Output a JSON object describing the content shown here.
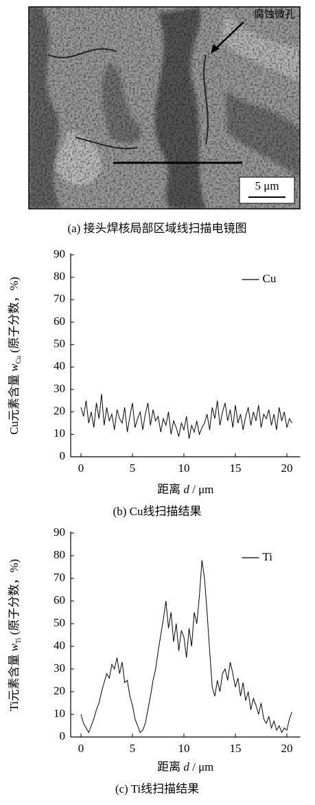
{
  "image_panel": {
    "annotation": "腐蚀微孔",
    "scale_bar": "5 μm",
    "caption": "(a) 接头焊核局部区域线扫描电镜图"
  },
  "chart_data": [
    {
      "type": "line",
      "caption": "(b) Cu线扫描结果",
      "xlabel": {
        "prefix": "距离 ",
        "var": "d",
        "suffix": " / μm"
      },
      "ylabel": {
        "prefix": "Cu元素含量 ",
        "var": "w",
        "sub": "Cu",
        "suffix": " (原子分数，%)"
      },
      "x": [
        0,
        0.25,
        0.5,
        0.75,
        1,
        1.25,
        1.5,
        1.75,
        2,
        2.25,
        2.5,
        2.75,
        3,
        3.25,
        3.5,
        3.75,
        4,
        4.25,
        4.5,
        4.75,
        5,
        5.25,
        5.5,
        5.75,
        6,
        6.25,
        6.5,
        6.75,
        7,
        7.25,
        7.5,
        7.75,
        8,
        8.25,
        8.5,
        8.75,
        9,
        9.25,
        9.5,
        9.75,
        10,
        10.25,
        10.5,
        10.75,
        11,
        11.25,
        11.5,
        11.75,
        12,
        12.25,
        12.5,
        12.75,
        13,
        13.25,
        13.5,
        13.75,
        14,
        14.25,
        14.5,
        14.75,
        15,
        15.25,
        15.5,
        15.75,
        16,
        16.25,
        16.5,
        16.75,
        17,
        17.25,
        17.5,
        17.75,
        18,
        18.25,
        18.5,
        18.75,
        19,
        19.25,
        19.5,
        19.75,
        20,
        20.25,
        20.5
      ],
      "series": [
        {
          "name": "Cu",
          "color": "#000000",
          "values": [
            22,
            18,
            25,
            15,
            20,
            13,
            24,
            17,
            28,
            14,
            22,
            16,
            19,
            12,
            21,
            17,
            15,
            22,
            11,
            18,
            24,
            13,
            17,
            20,
            12,
            19,
            24,
            14,
            21,
            16,
            18,
            11,
            17,
            14,
            20,
            10,
            16,
            13,
            9,
            15,
            12,
            18,
            8,
            14,
            11,
            16,
            10,
            13,
            15,
            19,
            12,
            22,
            17,
            25,
            14,
            20,
            24,
            16,
            21,
            13,
            23,
            15,
            19,
            12,
            18,
            22,
            14,
            20,
            16,
            23,
            13,
            19,
            17,
            21,
            14,
            19,
            12,
            22,
            16,
            20,
            13,
            17,
            15
          ]
        }
      ],
      "xlim": [
        -1,
        21.3
      ],
      "ylim": [
        0,
        90
      ],
      "xticks": [
        0,
        5,
        10,
        15,
        20
      ],
      "yticks": [
        0,
        10,
        20,
        30,
        40,
        50,
        60,
        70,
        80,
        90
      ],
      "legend": "upper right"
    },
    {
      "type": "line",
      "caption": "(c) Ti线扫描结果",
      "xlabel": {
        "prefix": "距离 ",
        "var": "d",
        "suffix": " / μm"
      },
      "ylabel": {
        "prefix": "Ti元素含量 ",
        "var": "w",
        "sub": "Ti",
        "suffix": " (原子分数，%)"
      },
      "x": [
        0,
        0.25,
        0.5,
        0.75,
        1,
        1.25,
        1.5,
        1.75,
        2,
        2.25,
        2.5,
        2.75,
        3,
        3.25,
        3.5,
        3.75,
        4,
        4.25,
        4.5,
        4.75,
        5,
        5.25,
        5.5,
        5.75,
        6,
        6.25,
        6.5,
        6.75,
        7,
        7.25,
        7.5,
        7.75,
        8,
        8.25,
        8.5,
        8.75,
        9,
        9.25,
        9.5,
        9.75,
        10,
        10.25,
        10.5,
        10.75,
        11,
        11.25,
        11.5,
        11.75,
        12,
        12.25,
        12.5,
        12.75,
        13,
        13.25,
        13.5,
        13.75,
        14,
        14.25,
        14.5,
        14.75,
        15,
        15.25,
        15.5,
        15.75,
        16,
        16.25,
        16.5,
        16.75,
        17,
        17.25,
        17.5,
        17.75,
        18,
        18.25,
        18.5,
        18.75,
        19,
        19.25,
        19.5,
        19.75,
        20,
        20.25,
        20.5
      ],
      "series": [
        {
          "name": "Ti",
          "color": "#000000",
          "values": [
            10,
            6,
            4,
            2,
            5,
            8,
            12,
            15,
            20,
            24,
            28,
            26,
            32,
            30,
            35,
            28,
            33,
            24,
            25,
            18,
            14,
            8,
            5,
            2,
            3,
            6,
            12,
            18,
            25,
            30,
            38,
            45,
            52,
            60,
            48,
            55,
            42,
            50,
            38,
            47,
            44,
            35,
            48,
            40,
            55,
            50,
            62,
            78,
            70,
            55,
            38,
            22,
            18,
            25,
            20,
            28,
            30,
            25,
            33,
            28,
            22,
            26,
            18,
            24,
            16,
            20,
            12,
            17,
            14,
            10,
            15,
            8,
            6,
            9,
            4,
            7,
            3,
            5,
            2,
            4,
            3,
            8,
            11
          ]
        }
      ],
      "xlim": [
        -1,
        21.3
      ],
      "ylim": [
        0,
        90
      ],
      "xticks": [
        0,
        5,
        10,
        15,
        20
      ],
      "yticks": [
        0,
        10,
        20,
        30,
        40,
        50,
        60,
        70,
        80,
        90
      ],
      "legend": "upper right"
    }
  ]
}
